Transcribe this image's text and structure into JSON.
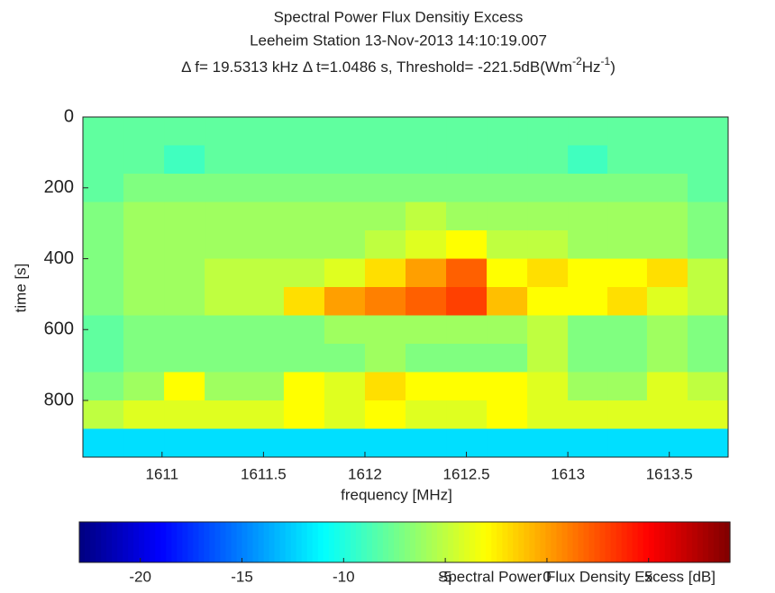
{
  "chart_data": {
    "type": "heatmap",
    "title": "Spectral Power Flux Densitiy Excess",
    "subtitle": "Leeheim Station 13-Nov-2013 14:10:19.007",
    "subtitle2_parts": [
      "Δ f= 19.5313 kHz Δ t=1.0486 s, Threshold= -221.5dB(Wm",
      "-2",
      "Hz",
      "-1",
      ")"
    ],
    "x_label": "frequency [MHz]",
    "y_label": "time [s]",
    "colorbar_label": "Spectral Power Flux Density Excess [dB]",
    "xlim": [
      1610.61,
      1613.79
    ],
    "xticks": [
      1611,
      1611.5,
      1612,
      1612.5,
      1613,
      1613.5
    ],
    "ylim": [
      0,
      960
    ],
    "y_reversed": true,
    "yticks": [
      0,
      200,
      400,
      600,
      800
    ],
    "clim": [
      -23,
      9
    ],
    "cticks": [
      -20,
      -15,
      -10,
      -5,
      0,
      5
    ],
    "colormap": "jet",
    "x": [
      1610.71,
      1610.91,
      1611.11,
      1611.31,
      1611.5,
      1611.7,
      1611.9,
      1612.1,
      1612.3,
      1612.5,
      1612.7,
      1612.9,
      1613.1,
      1613.29,
      1613.49,
      1613.69
    ],
    "y": [
      40,
      120,
      200,
      280,
      360,
      440,
      520,
      600,
      680,
      760,
      840,
      920
    ],
    "z": [
      [
        -8,
        -8,
        -8,
        -8,
        -8,
        -8,
        -8,
        -8,
        -8,
        -8,
        -8,
        -8,
        -8,
        -8,
        -8,
        -8
      ],
      [
        -8,
        -8,
        -9,
        -8,
        -8,
        -8,
        -8,
        -8,
        -8,
        -8,
        -8,
        -8,
        -9,
        -8,
        -8,
        -8
      ],
      [
        -8,
        -7,
        -7,
        -7,
        -7,
        -7,
        -7,
        -7,
        -7,
        -7,
        -7,
        -7,
        -7,
        -7,
        -7,
        -8
      ],
      [
        -7,
        -6,
        -6,
        -6,
        -6,
        -6,
        -6,
        -6,
        -5,
        -6,
        -6,
        -6,
        -6,
        -6,
        -6,
        -7
      ],
      [
        -7,
        -6,
        -6,
        -6,
        -6,
        -6,
        -6,
        -5,
        -4,
        -3,
        -5,
        -5,
        -6,
        -6,
        -6,
        -7
      ],
      [
        -7,
        -6,
        -6,
        -5,
        -5,
        -5,
        -4,
        -2,
        0,
        2,
        -3,
        -2,
        -3,
        -3,
        -2,
        -5
      ],
      [
        -7,
        -6,
        -6,
        -5,
        -5,
        -2,
        0,
        1,
        2,
        3,
        -1,
        -3,
        -3,
        -2,
        -4,
        -5
      ],
      [
        -8,
        -7,
        -7,
        -7,
        -7,
        -7,
        -6,
        -6,
        -6,
        -6,
        -6,
        -5,
        -7,
        -7,
        -6,
        -7
      ],
      [
        -8,
        -7,
        -7,
        -7,
        -7,
        -7,
        -7,
        -6,
        -7,
        -7,
        -7,
        -5,
        -7,
        -7,
        -6,
        -7
      ],
      [
        -7,
        -6,
        -3,
        -6,
        -6,
        -3,
        -4,
        -2,
        -3,
        -3,
        -3,
        -4,
        -6,
        -6,
        -4,
        -5
      ],
      [
        -5,
        -4,
        -4,
        -4,
        -4,
        -3,
        -4,
        -3,
        -4,
        -4,
        -3,
        -4,
        -4,
        -4,
        -4,
        -4
      ],
      [
        -12,
        -12,
        -12,
        -12,
        -12,
        -12,
        -12,
        -12,
        -12,
        -12,
        -12,
        -12,
        -12,
        -12,
        -12,
        -12
      ]
    ]
  }
}
